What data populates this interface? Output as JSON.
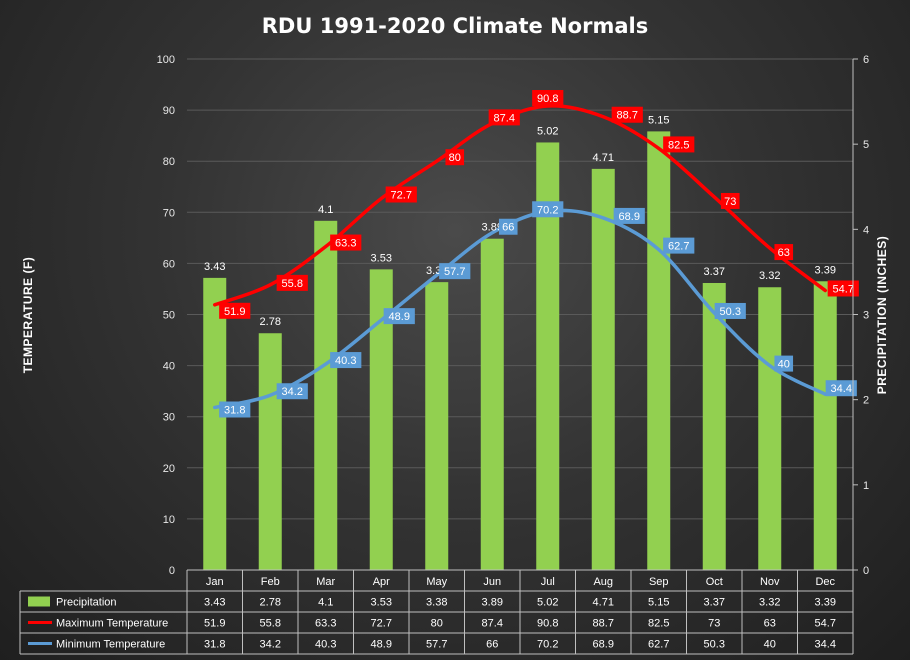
{
  "chart_data": {
    "type": "bar",
    "title": "RDU 1991-2020 Climate Normals",
    "ylabel_left": "TEMPERATURE (F)",
    "ylabel_right": "PRECIPITATION (INCHES)",
    "ylim_left": [
      0,
      100
    ],
    "ylim_right": [
      0,
      6
    ],
    "yticks_left": [
      "0",
      "10",
      "20",
      "30",
      "40",
      "50",
      "60",
      "70",
      "80",
      "90",
      "100"
    ],
    "yticks_right": [
      "0",
      "1",
      "2",
      "3",
      "4",
      "5",
      "6"
    ],
    "categories": [
      "Jan",
      "Feb",
      "Mar",
      "Apr",
      "May",
      "Jun",
      "Jul",
      "Aug",
      "Sep",
      "Oct",
      "Nov",
      "Dec"
    ],
    "series": [
      {
        "name": "Precipitation",
        "type": "bar",
        "axis": "right",
        "color": "#92d050",
        "values": [
          3.43,
          2.78,
          4.1,
          3.53,
          3.38,
          3.89,
          5.02,
          4.71,
          5.15,
          3.37,
          3.32,
          3.39
        ],
        "labels": [
          "3.43",
          "2.78",
          "4.1",
          "3.53",
          "3.38",
          "3.89",
          "5.02",
          "4.71",
          "5.15",
          "3.37",
          "3.32",
          "3.39"
        ]
      },
      {
        "name": "Maximum Temperature",
        "type": "line",
        "axis": "left",
        "color": "#ff0000",
        "values": [
          51.9,
          55.8,
          63.3,
          72.7,
          80,
          87.4,
          90.8,
          88.7,
          82.5,
          73,
          63,
          54.7
        ],
        "labels": [
          "51.9",
          "55.8",
          "63.3",
          "72.7",
          "80",
          "87.4",
          "90.8",
          "88.7",
          "82.5",
          "73",
          "63",
          "54.7"
        ]
      },
      {
        "name": "Minimum Temperature",
        "type": "line",
        "axis": "left",
        "color": "#5b9bd5",
        "values": [
          31.8,
          34.2,
          40.3,
          48.9,
          57.7,
          66,
          70.2,
          68.9,
          62.7,
          50.3,
          40,
          34.4
        ],
        "labels": [
          "31.8",
          "34.2",
          "40.3",
          "48.9",
          "57.7",
          "66",
          "70.2",
          "68.9",
          "62.7",
          "50.3",
          "40",
          "34.4"
        ]
      }
    ],
    "data_table": true
  }
}
